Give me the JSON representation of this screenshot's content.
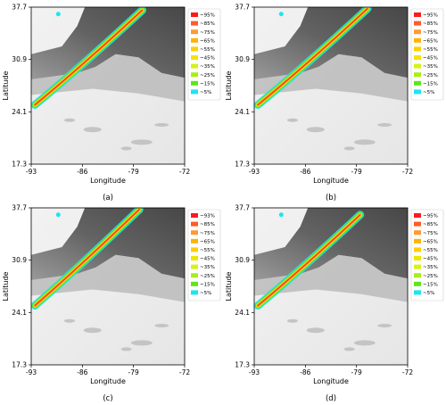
{
  "chart_data": {
    "type": "heatmap",
    "xlabel": "Longitude",
    "ylabel": "Latitude",
    "xlim": [
      -93,
      -72
    ],
    "ylim": [
      17.3,
      37.7
    ],
    "x_ticks": [
      "-93",
      "-86",
      "-79",
      "-72"
    ],
    "y_ticks": [
      "17.3",
      "24.1",
      "30.9",
      "37.7"
    ],
    "legend_placement": "right",
    "legend": [
      {
        "label": "~95%",
        "color": "#ff1a1a"
      },
      {
        "label": "~85%",
        "color": "#ff5c26"
      },
      {
        "label": "~75%",
        "color": "#ff9a33"
      },
      {
        "label": "~65%",
        "color": "#ffb300"
      },
      {
        "label": "~55%",
        "color": "#ffd000"
      },
      {
        "label": "~45%",
        "color": "#f0e600"
      },
      {
        "label": "~35%",
        "color": "#d6f21a"
      },
      {
        "label": "~25%",
        "color": "#a8ee1a"
      },
      {
        "label": "~15%",
        "color": "#5ce61a"
      },
      {
        "label": "~5%",
        "color": "#1ae6f0"
      }
    ],
    "panels": [
      {
        "caption": "(a)",
        "legend_labels": [
          "~95%",
          "~85%",
          "~75%",
          "~65%",
          "~55%",
          "~45%",
          "~35%",
          "~25%",
          "~15%",
          "~5%"
        ],
        "band_lon": [
          -92.5,
          -77.8
        ],
        "band_lat": [
          25.0,
          37.3
        ]
      },
      {
        "caption": "(b)",
        "legend_labels": [
          "~95%",
          "~85%",
          "~75%",
          "~65%",
          "~55%",
          "~45%",
          "~35%",
          "~25%",
          "~15%",
          "~5%"
        ],
        "band_lon": [
          -92.5,
          -77.5
        ],
        "band_lat": [
          25.0,
          37.5
        ]
      },
      {
        "caption": "(c)",
        "legend_labels": [
          "~93%",
          "~85%",
          "~75%",
          "~65%",
          "~55%",
          "~45%",
          "~35%",
          "~25%",
          "~15%",
          "~5%"
        ],
        "band_lon": [
          -92.5,
          -78.2
        ],
        "band_lat": [
          25.0,
          37.5
        ]
      },
      {
        "caption": "(d)",
        "legend_labels": [
          "~95%",
          "~85%",
          "~75%",
          "~65%",
          "~55%",
          "~45%",
          "~35%",
          "~25%",
          "~15%",
          "~5%"
        ],
        "band_lon": [
          -92.5,
          -78.5
        ],
        "band_lat": [
          25.0,
          36.8
        ]
      }
    ]
  }
}
